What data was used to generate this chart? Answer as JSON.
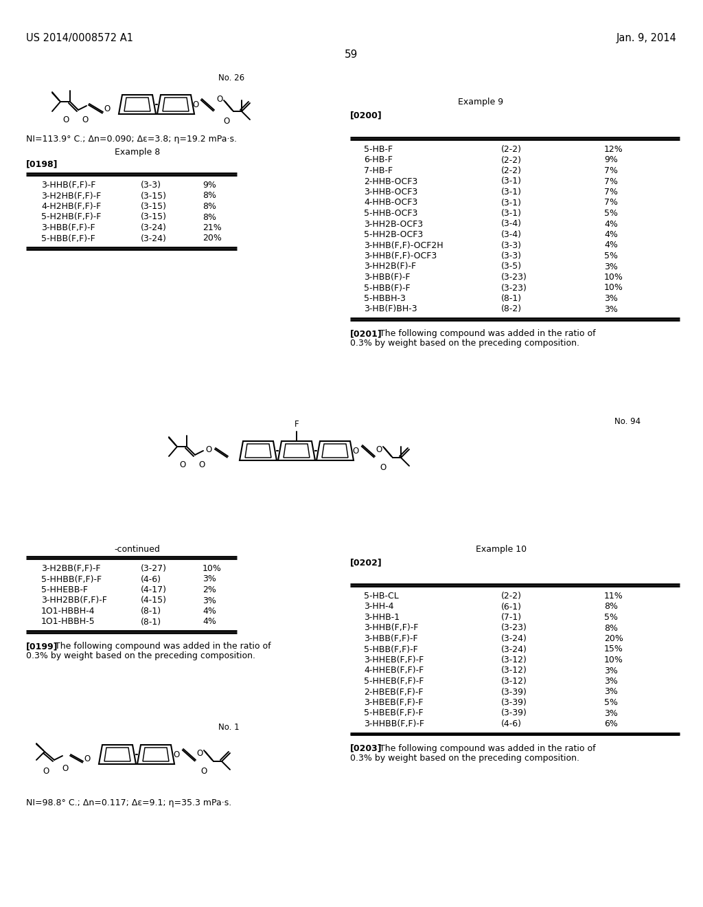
{
  "bg_color": "#ffffff",
  "header_left": "US 2014/0008572 A1",
  "header_right": "Jan. 9, 2014",
  "page_number": "59",
  "no26_label": "No. 26",
  "ni_line1": "NI=113.9° C.; Δn=0.090; Δε=3.8; η=19.2 mPa·s.",
  "example8_label": "Example 8",
  "ref198": "[0198]",
  "table1_rows": [
    [
      "3-HHB(F,F)-F",
      "(3-3)",
      "9%"
    ],
    [
      "3-H2HB(F,F)-F",
      "(3-15)",
      "8%"
    ],
    [
      "4-H2HB(F,F)-F",
      "(3-15)",
      "8%"
    ],
    [
      "5-H2HB(F,F)-F",
      "(3-15)",
      "8%"
    ],
    [
      "3-HBB(F,F)-F",
      "(3-24)",
      "21%"
    ],
    [
      "5-HBB(F,F)-F",
      "(3-24)",
      "20%"
    ]
  ],
  "example9_label": "Example 9",
  "ref200": "[0200]",
  "table2_rows": [
    [
      "5-HB-F",
      "(2-2)",
      "12%"
    ],
    [
      "6-HB-F",
      "(2-2)",
      "9%"
    ],
    [
      "7-HB-F",
      "(2-2)",
      "7%"
    ],
    [
      "2-HHB-OCF3",
      "(3-1)",
      "7%"
    ],
    [
      "3-HHB-OCF3",
      "(3-1)",
      "7%"
    ],
    [
      "4-HHB-OCF3",
      "(3-1)",
      "7%"
    ],
    [
      "5-HHB-OCF3",
      "(3-1)",
      "5%"
    ],
    [
      "3-HH2B-OCF3",
      "(3-4)",
      "4%"
    ],
    [
      "5-HH2B-OCF3",
      "(3-4)",
      "4%"
    ],
    [
      "3-HHB(F,F)-OCF2H",
      "(3-3)",
      "4%"
    ],
    [
      "3-HHB(F,F)-OCF3",
      "(3-3)",
      "5%"
    ],
    [
      "3-HH2B(F)-F",
      "(3-5)",
      "3%"
    ],
    [
      "3-HBB(F)-F",
      "(3-23)",
      "10%"
    ],
    [
      "5-HBB(F)-F",
      "(3-23)",
      "10%"
    ],
    [
      "5-HBBH-3",
      "(8-1)",
      "3%"
    ],
    [
      "3-HB(F)BH-3",
      "(8-2)",
      "3%"
    ]
  ],
  "ref201": "[0201]",
  "text201a": "The following compound was added in the ratio of",
  "text201b": "0.3% by weight based on the preceding composition.",
  "no94_label": "No. 94",
  "continued_label": "-continued",
  "table3_rows": [
    [
      "3-H2BB(F,F)-F",
      "(3-27)",
      "10%"
    ],
    [
      "5-HHBB(F,F)-F",
      "(4-6)",
      "3%"
    ],
    [
      "5-HHEBB-F",
      "(4-17)",
      "2%"
    ],
    [
      "3-HH2BB(F,F)-F",
      "(4-15)",
      "3%"
    ],
    [
      "1O1-HBBH-4",
      "(8-1)",
      "4%"
    ],
    [
      "1O1-HBBH-5",
      "(8-1)",
      "4%"
    ]
  ],
  "ref199": "[0199]",
  "text199a": "The following compound was added in the ratio of",
  "text199b": "0.3% by weight based on the preceding composition.",
  "no1_label": "No. 1",
  "ni_line2": "NI=98.8° C.; Δn=0.117; Δε=9.1; η=35.3 mPa·s.",
  "example10_label": "Example 10",
  "ref202": "[0202]",
  "table4_rows": [
    [
      "5-HB-CL",
      "(2-2)",
      "11%"
    ],
    [
      "3-HH-4",
      "(6-1)",
      "8%"
    ],
    [
      "3-HHB-1",
      "(7-1)",
      "5%"
    ],
    [
      "3-HHB(F,F)-F",
      "(3-23)",
      "8%"
    ],
    [
      "3-HBB(F,F)-F",
      "(3-24)",
      "20%"
    ],
    [
      "5-HBB(F,F)-F",
      "(3-24)",
      "15%"
    ],
    [
      "3-HHEB(F,F)-F",
      "(3-12)",
      "10%"
    ],
    [
      "4-HHEB(F,F)-F",
      "(3-12)",
      "3%"
    ],
    [
      "5-HHEB(F,F)-F",
      "(3-12)",
      "3%"
    ],
    [
      "2-HBEB(F,F)-F",
      "(3-39)",
      "3%"
    ],
    [
      "3-HBEB(F,F)-F",
      "(3-39)",
      "5%"
    ],
    [
      "5-HBEB(F,F)-F",
      "(3-39)",
      "3%"
    ],
    [
      "3-HHBB(F,F)-F",
      "(4-6)",
      "6%"
    ]
  ],
  "ref203": "[0203]",
  "text203a": "The following compound was added in the ratio of",
  "text203b": "0.3% by weight based on the preceding composition."
}
